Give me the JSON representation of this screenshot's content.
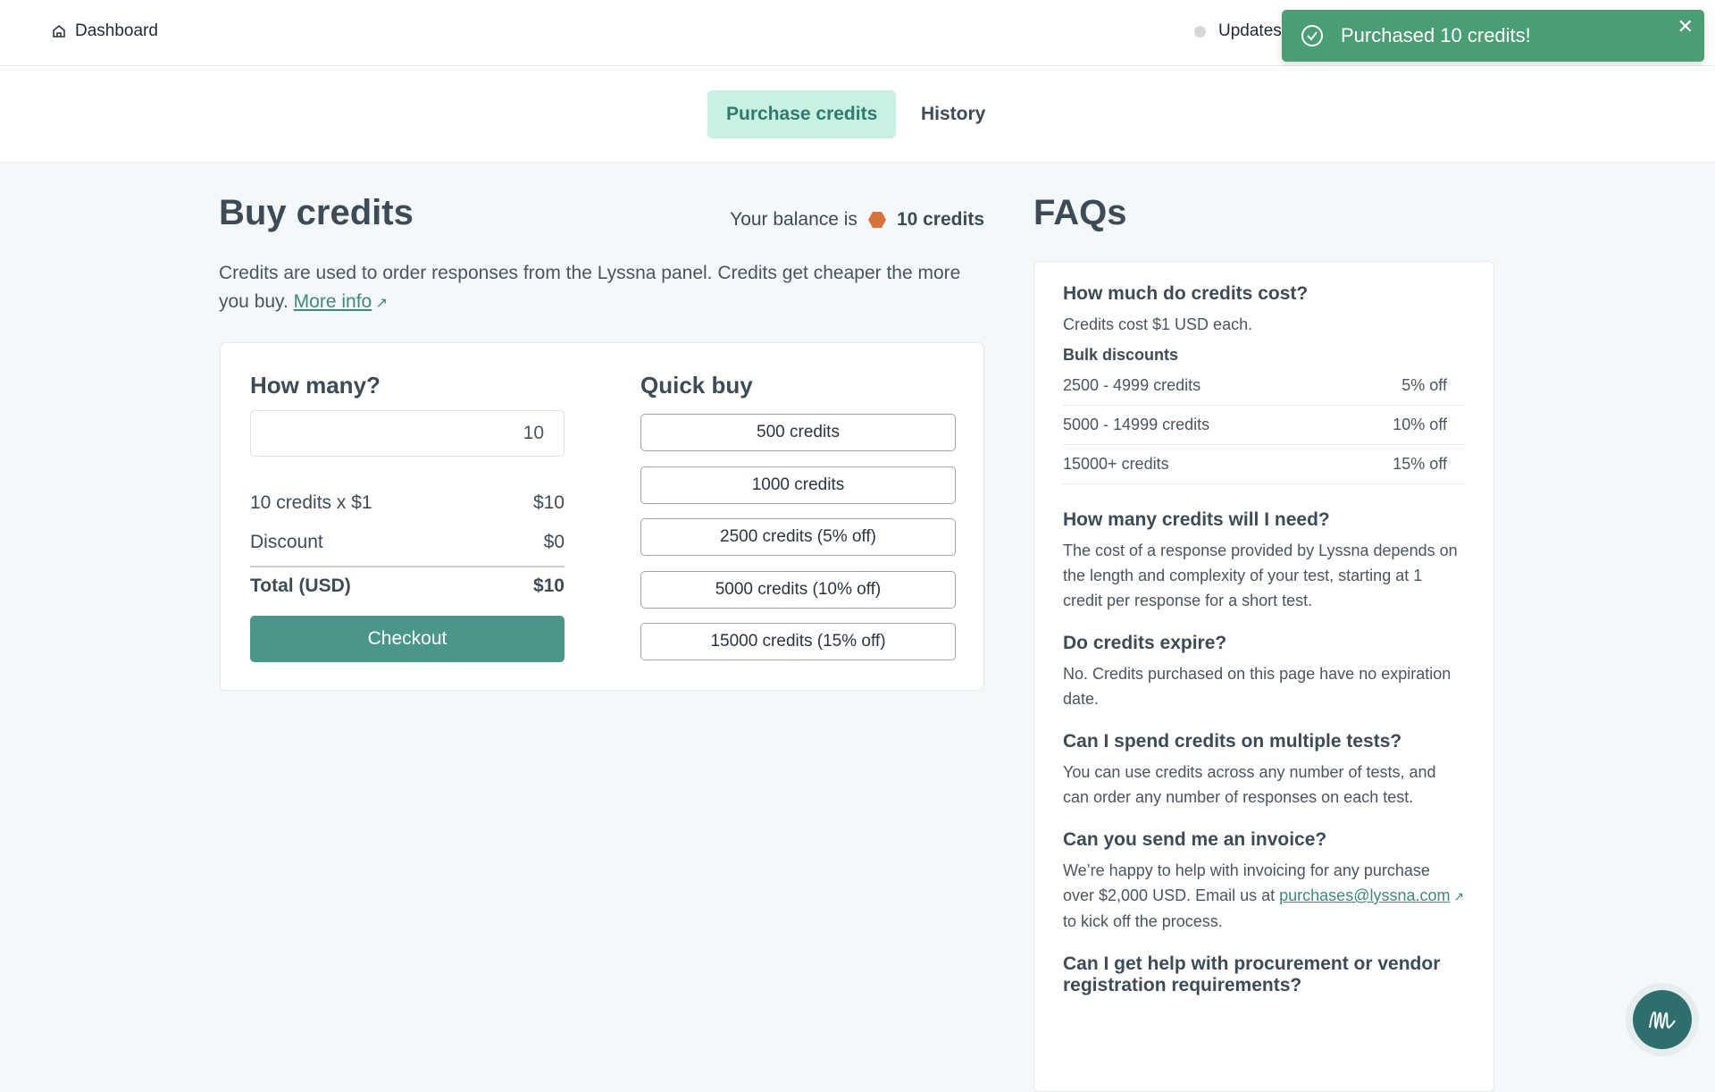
{
  "header": {
    "dashboard": "Dashboard",
    "updates": "Updates"
  },
  "toast": {
    "message": "Purchased 10 credits!",
    "color": "#4a9e74"
  },
  "tabs": [
    {
      "label": "Purchase credits",
      "active": true
    },
    {
      "label": "History",
      "active": false
    }
  ],
  "buy": {
    "title": "Buy credits",
    "balance_prefix": "Your balance is",
    "balance": "10 credits",
    "description": "Credits are used to order responses from the Lyssna panel. Credits get cheaper the more you buy.",
    "more_info": "More info",
    "how_many": "How many?",
    "quantity": "10",
    "line1_label": "10 credits x $1",
    "line1_value": "$10",
    "discount_label": "Discount",
    "discount_value": "$0",
    "total_label": "Total (USD)",
    "total_value": "$10",
    "checkout": "Checkout",
    "quick_buy": "Quick buy",
    "quick_options": [
      "500 credits",
      "1000 credits",
      "2500 credits (5% off)",
      "5000 credits (10% off)",
      "15000 credits (15% off)"
    ]
  },
  "faqs": {
    "title": "FAQs",
    "q1": "How much do credits cost?",
    "a1": "Credits cost $1 USD each.",
    "bulk": "Bulk discounts",
    "discounts": [
      {
        "range": "2500 - 4999 credits",
        "off": "5% off"
      },
      {
        "range": "5000 - 14999 credits",
        "off": "10% off"
      },
      {
        "range": "15000+ credits",
        "off": "15% off"
      }
    ],
    "q2": "How many credits will I need?",
    "a2": "The cost of a response provided by Lyssna depends on the length and complexity of your test, starting at 1 credit per response for a short test.",
    "q3": "Do credits expire?",
    "a3": "No. Credits purchased on this page have no expiration date.",
    "q4": "Can I spend credits on multiple tests?",
    "a4": "You can use credits across any number of tests, and can order any number of responses on each test.",
    "q5": "Can you send me an invoice?",
    "a5a": "We’re happy to help with invoicing for any purchase over $2,000 USD. Email us at",
    "email": "purchases@lyssna.com",
    "a5b": "to kick off the process.",
    "q6": "Can I get help with procurement or vendor registration requirements?"
  }
}
